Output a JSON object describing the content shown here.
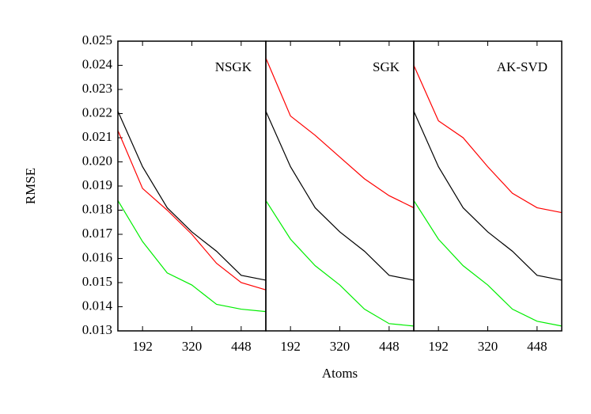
{
  "chart_data": [
    {
      "type": "line",
      "label": "NSGK",
      "ylabel": "RMSE",
      "x": [
        128,
        192,
        256,
        320,
        384,
        448,
        512
      ],
      "xlim": [
        128,
        512
      ],
      "xticks": [
        192,
        320,
        448
      ],
      "ylim": [
        0.013,
        0.025
      ],
      "yticks": [
        0.013,
        0.014,
        0.015,
        0.016,
        0.017,
        0.018,
        0.019,
        {
          "value": 0.02,
          "label": "0.020"
        },
        0.021,
        0.022,
        0.023,
        0.024,
        0.025
      ],
      "series": [
        {
          "color": "#000000",
          "values": [
            0.0221,
            0.0198,
            0.0181,
            0.0171,
            0.0163,
            0.0153,
            0.0151
          ]
        },
        {
          "color": "#ff0000",
          "values": [
            0.0213,
            0.0189,
            0.018,
            0.017,
            0.0158,
            0.015,
            0.0147
          ]
        },
        {
          "color": "#00ee00",
          "values": [
            0.0184,
            0.0167,
            0.0154,
            0.0149,
            0.0141,
            0.0139,
            0.0138
          ]
        }
      ]
    },
    {
      "type": "line",
      "label": "SGK",
      "xlabel": "Atoms",
      "x": [
        128,
        192,
        256,
        320,
        384,
        448,
        512
      ],
      "xlim": [
        128,
        512
      ],
      "xticks": [
        192,
        320,
        448
      ],
      "ylim": [
        0.013,
        0.025
      ],
      "series": [
        {
          "color": "#000000",
          "values": [
            0.0221,
            0.0198,
            0.0181,
            0.0171,
            0.0163,
            0.0153,
            0.0151
          ]
        },
        {
          "color": "#ff0000",
          "values": [
            0.0243,
            0.0219,
            0.0211,
            0.0202,
            0.0193,
            0.0186,
            0.0181
          ]
        },
        {
          "color": "#00ee00",
          "values": [
            0.0184,
            0.0168,
            0.0157,
            0.0149,
            0.0139,
            0.0133,
            0.0132
          ]
        }
      ]
    },
    {
      "type": "line",
      "label": "AK-SVD",
      "x": [
        128,
        192,
        256,
        320,
        384,
        448,
        512
      ],
      "xlim": [
        128,
        512
      ],
      "xticks": [
        192,
        320,
        448
      ],
      "ylim": [
        0.013,
        0.025
      ],
      "series": [
        {
          "color": "#000000",
          "values": [
            0.0221,
            0.0198,
            0.0181,
            0.0171,
            0.0163,
            0.0153,
            0.0151
          ]
        },
        {
          "color": "#ff0000",
          "values": [
            0.024,
            0.0217,
            0.021,
            0.0198,
            0.0187,
            0.0181,
            0.0179
          ]
        },
        {
          "color": "#00ee00",
          "values": [
            0.0184,
            0.0168,
            0.0157,
            0.0149,
            0.0139,
            0.0134,
            0.0132
          ]
        }
      ]
    }
  ]
}
